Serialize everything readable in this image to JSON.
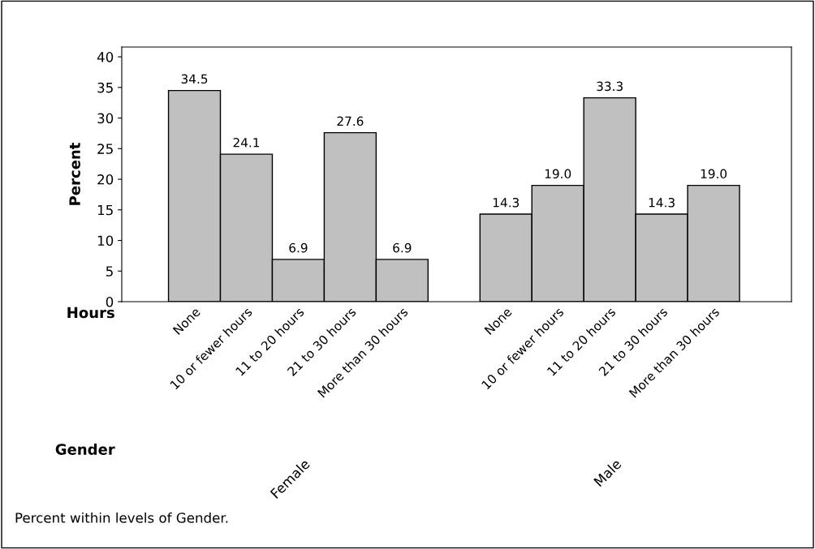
{
  "chart_data": {
    "type": "bar",
    "ylabel": "Percent",
    "xlabel": "Hours",
    "categories": [
      "None",
      "10 or fewer hours",
      "11 to 20 hours",
      "21 to 30 hours",
      "More than 30 hours",
      null,
      "None",
      "10 or fewer hours",
      "11 to 20 hours",
      "21 to 30 hours",
      "More than 30 hours"
    ],
    "values": [
      34.5,
      24.1,
      6.9,
      27.6,
      6.9,
      null,
      14.3,
      19.0,
      33.3,
      14.3,
      19.0
    ],
    "value_labels": [
      "34.5",
      "24.1",
      "6.9",
      "27.6",
      "6.9",
      null,
      "14.3",
      "19.0",
      "33.3",
      "14.3",
      "19.0"
    ],
    "color": "#c0c0c0",
    "ylim": [
      0,
      41.6
    ],
    "yticks": [
      0,
      5,
      10,
      15,
      20,
      25,
      30,
      35,
      40
    ],
    "grid": false,
    "annotations": [
      "Female",
      "Male",
      "Gender",
      "Percent within levels of Gender."
    ]
  }
}
